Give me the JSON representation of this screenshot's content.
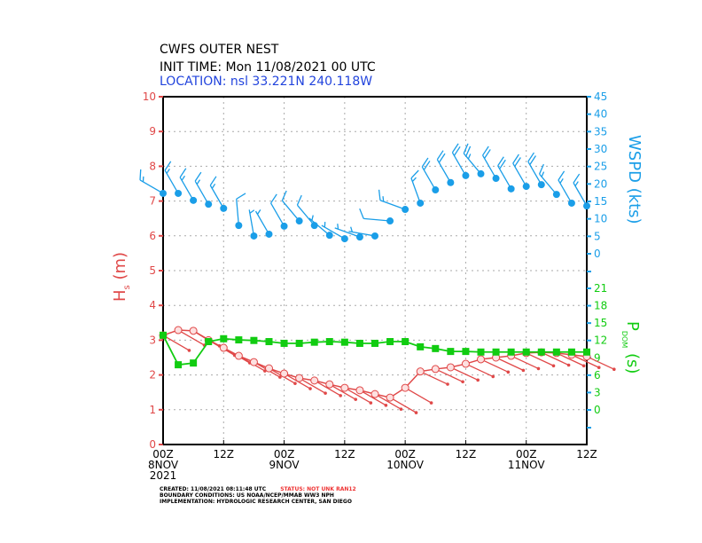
{
  "header": {
    "title": "CWFS OUTER NEST",
    "init_time": "INIT TIME: Mon 11/08/2021 00 UTC",
    "location": "LOCATION: nsl 33.221N 240.118W"
  },
  "footer": {
    "created": "CREATED: 11/08/2021 08:11:48 UTC",
    "status": "STATUS: NOT UNK RAN12",
    "boundary": "BOUNDARY CONDITIONS: US NOAA/NCEP/MMAB WW3 NPH",
    "implementation": "IMPLEMENTATION: HYDROLOGIC RESEARCH CENTER, SAN DIEGO"
  },
  "colors": {
    "hs": "#e04848",
    "wspd": "#1a9ee8",
    "period": "#11cc11",
    "location": "#2244dd",
    "status": "#ee3333"
  },
  "chart_data": {
    "type": "line",
    "x_start": "2021-11-08 00Z",
    "x_step_hours": 3,
    "x_tick_labels": [
      {
        "hour": 0,
        "lines": [
          "00Z",
          "8NOV",
          "2021"
        ]
      },
      {
        "hour": 12,
        "lines": [
          "12Z"
        ]
      },
      {
        "hour": 24,
        "lines": [
          "00Z",
          "9NOV"
        ]
      },
      {
        "hour": 36,
        "lines": [
          "12Z"
        ]
      },
      {
        "hour": 48,
        "lines": [
          "00Z",
          "10NOV"
        ]
      },
      {
        "hour": 60,
        "lines": [
          "12Z"
        ]
      },
      {
        "hour": 72,
        "lines": [
          "00Z",
          "11NOV"
        ]
      },
      {
        "hour": 84,
        "lines": [
          "12Z"
        ]
      }
    ],
    "xlim_hours": [
      0,
      84
    ],
    "grid": true,
    "left_axis": {
      "label": "H",
      "label_sub": "s",
      "label_unit": "(m)",
      "ylim": [
        0,
        10
      ],
      "ticks": [
        0,
        1,
        2,
        3,
        4,
        5,
        6,
        7,
        8,
        9,
        10
      ]
    },
    "wspd_axis": {
      "label": "WSPD (kts)",
      "ylim": [
        0,
        45
      ],
      "ticks": [
        0,
        5,
        10,
        15,
        20,
        25,
        30,
        35,
        40,
        45
      ]
    },
    "period_axis": {
      "label": "P",
      "label_sub": "DOM",
      "label_unit": "(s)",
      "ylim": [
        0,
        21
      ],
      "ticks": [
        0,
        3,
        6,
        9,
        12,
        15,
        18,
        21
      ]
    },
    "series": {
      "hs_m": [
        3.14,
        3.29,
        3.27,
        3.0,
        2.78,
        2.55,
        2.37,
        2.19,
        2.04,
        1.91,
        1.84,
        1.73,
        1.63,
        1.56,
        1.45,
        1.35,
        1.63,
        2.1,
        2.17,
        2.22,
        2.32,
        2.45,
        2.5,
        2.55,
        2.63,
        2.65,
        2.63,
        2.58,
        2.53
      ],
      "wave_dir_from_deg": [
        300,
        300,
        300,
        300,
        300,
        300,
        300,
        300,
        300,
        300,
        300,
        300,
        300,
        300,
        300,
        300,
        300,
        295,
        295,
        295,
        295,
        295,
        295,
        295,
        295,
        295,
        295,
        295,
        295
      ],
      "period_s": [
        12.9,
        7.8,
        8.1,
        11.8,
        12.3,
        12.1,
        12.0,
        11.8,
        11.5,
        11.5,
        11.7,
        11.8,
        11.7,
        11.5,
        11.5,
        11.8,
        11.8,
        10.9,
        10.6,
        10.1,
        10.1,
        10.0,
        10.0,
        10.0,
        10.0,
        10.0,
        10.0,
        10.0,
        10.0
      ],
      "wspd_kts": [
        17.3,
        17.3,
        15.3,
        14.2,
        13.0,
        8.1,
        5.1,
        5.6,
        7.9,
        9.4,
        8.1,
        5.3,
        4.3,
        4.8,
        5.1,
        9.4,
        12.7,
        14.5,
        18.3,
        20.4,
        22.4,
        22.9,
        21.6,
        18.6,
        19.3,
        19.8,
        17.0,
        14.5,
        13.7
      ],
      "wind_dir_from_deg": [
        300,
        330,
        330,
        330,
        330,
        355,
        350,
        330,
        330,
        320,
        320,
        310,
        300,
        290,
        280,
        275,
        290,
        340,
        330,
        330,
        330,
        320,
        330,
        330,
        330,
        330,
        320,
        330,
        330
      ]
    }
  }
}
